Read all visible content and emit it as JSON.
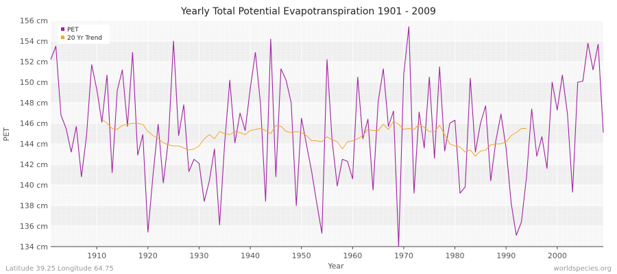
{
  "chart_data": {
    "type": "line",
    "title": "Yearly Total Potential Evapotranspiration 1901 - 2009",
    "xlabel": "Year",
    "ylabel": "PET",
    "xlim": [
      1901,
      2009
    ],
    "ylim": [
      134,
      156
    ],
    "x_ticks": [
      1910,
      1920,
      1930,
      1940,
      1950,
      1960,
      1970,
      1980,
      1990,
      2000
    ],
    "y_ticks": [
      134,
      136,
      138,
      140,
      142,
      144,
      146,
      148,
      150,
      152,
      154,
      156
    ],
    "y_tick_labels": [
      "134 cm",
      "136 cm",
      "138 cm",
      "140 cm",
      "142 cm",
      "144 cm",
      "146 cm",
      "148 cm",
      "150 cm",
      "152 cm",
      "154 cm",
      "156 cm"
    ],
    "legend": {
      "position": "top-left"
    },
    "series": [
      {
        "name": "PET",
        "color": "#a020a0",
        "x_start": 1901,
        "values": [
          152.2,
          153.5,
          146.8,
          145.5,
          143.2,
          145.7,
          140.8,
          144.8,
          151.7,
          149.3,
          146.1,
          150.7,
          141.2,
          149.2,
          151.2,
          145.7,
          152.9,
          142.9,
          144.9,
          135.4,
          141.0,
          145.9,
          140.2,
          144.4,
          154.0,
          144.8,
          147.8,
          141.3,
          142.5,
          142.1,
          138.4,
          140.4,
          143.5,
          136.1,
          144.1,
          150.2,
          144.1,
          147.0,
          145.3,
          149.4,
          152.9,
          147.9,
          138.4,
          154.2,
          140.8,
          151.3,
          150.2,
          148.0,
          138.0,
          146.5,
          143.9,
          141.3,
          138.2,
          135.3,
          152.2,
          144.3,
          139.9,
          142.5,
          142.3,
          140.6,
          150.5,
          144.5,
          146.4,
          139.5,
          148.1,
          151.3,
          145.7,
          147.2,
          134.0,
          150.8,
          155.4,
          139.2,
          147.1,
          143.6,
          150.5,
          142.6,
          151.5,
          143.3,
          146.0,
          146.3,
          139.2,
          139.8,
          150.4,
          143.2,
          146.0,
          147.7,
          140.4,
          144.3,
          146.9,
          143.6,
          138.2,
          135.1,
          136.4,
          140.8,
          147.4,
          142.8,
          144.7,
          141.6,
          150.0,
          147.3,
          150.7,
          146.9,
          139.3,
          150.0,
          150.1,
          153.8,
          151.2,
          153.7,
          145.1
        ]
      },
      {
        "name": "20 Yr Trend",
        "color": "#f5a623",
        "x_start": 1911,
        "values": [
          146.4,
          146.0,
          145.5,
          145.4,
          145.8,
          145.9,
          146.0,
          146.0,
          145.9,
          145.2,
          144.8,
          144.5,
          144.1,
          143.9,
          143.8,
          143.8,
          143.6,
          143.4,
          143.5,
          143.8,
          144.5,
          144.9,
          144.5,
          145.2,
          145.0,
          144.9,
          145.2,
          145.1,
          144.9,
          145.3,
          145.4,
          145.5,
          145.3,
          145.0,
          145.8,
          145.7,
          145.2,
          145.1,
          145.2,
          145.1,
          144.8,
          144.3,
          144.3,
          144.2,
          144.7,
          144.4,
          144.2,
          143.5,
          144.2,
          144.3,
          144.5,
          144.8,
          145.4,
          145.3,
          145.3,
          145.9,
          145.4,
          146.2,
          145.9,
          145.4,
          145.5,
          145.4,
          145.9,
          145.6,
          145.2,
          145.2,
          145.8,
          144.9,
          144.0,
          143.8,
          143.7,
          143.2,
          143.4,
          142.8,
          143.3,
          143.4,
          143.9,
          144.0,
          144.0,
          144.2,
          144.8,
          145.1,
          145.5,
          145.5
        ]
      }
    ]
  },
  "footer": {
    "left": "Latitude 39.25 Longitude 64.75",
    "right": "worldspecies.org"
  }
}
